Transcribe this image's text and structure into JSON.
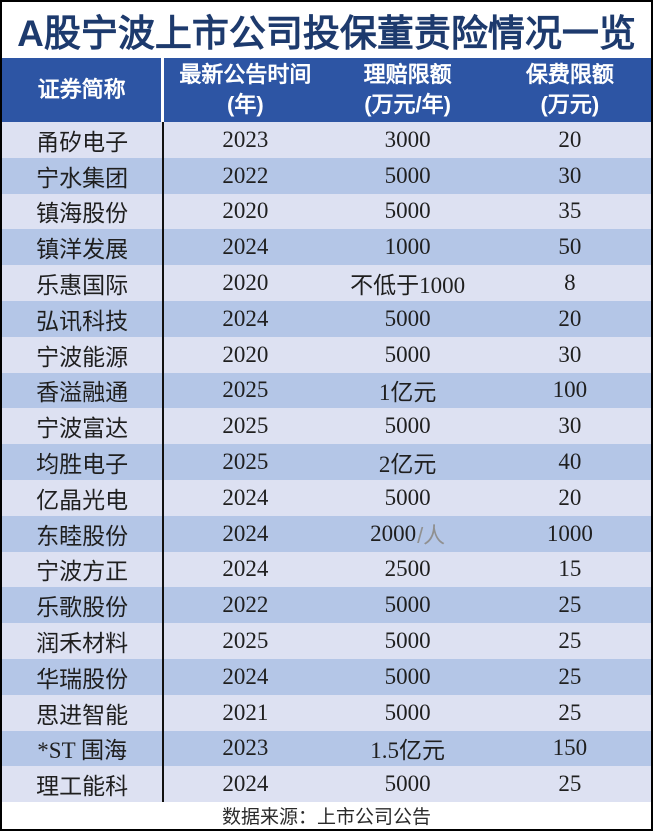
{
  "title": "A股宁波上市公司投保董责险情况一览",
  "header": {
    "columns": [
      {
        "line1": "证券简称",
        "line2": null
      },
      {
        "line1": "最新公告时间",
        "line2": "(年)"
      },
      {
        "line1": "理赔限额",
        "line2": "(万元/年)"
      },
      {
        "line1": "保费限额",
        "line2": "(万元)"
      }
    ]
  },
  "rows": [
    {
      "name": "甬矽电子",
      "year": "2023",
      "claim": "3000",
      "premium": "20"
    },
    {
      "name": "宁水集团",
      "year": "2022",
      "claim": "5000",
      "premium": "30"
    },
    {
      "name": "镇海股份",
      "year": "2020",
      "claim": "5000",
      "premium": "35"
    },
    {
      "name": "镇洋发展",
      "year": "2024",
      "claim": "1000",
      "premium": "50"
    },
    {
      "name": "乐惠国际",
      "year": "2020",
      "claim": "不低于1000",
      "premium": "8"
    },
    {
      "name": "弘讯科技",
      "year": "2024",
      "claim": "5000",
      "premium": "20"
    },
    {
      "name": "宁波能源",
      "year": "2020",
      "claim": "5000",
      "premium": "30"
    },
    {
      "name": "香溢融通",
      "year": "2025",
      "claim": "1亿元",
      "premium": "100"
    },
    {
      "name": "宁波富达",
      "year": "2025",
      "claim": "5000",
      "premium": "30"
    },
    {
      "name": "均胜电子",
      "year": "2025",
      "claim": "2亿元",
      "premium": "40"
    },
    {
      "name": "亿晶光电",
      "year": "2024",
      "claim": "5000",
      "premium": "20"
    },
    {
      "name": "东睦股份",
      "year": "2024",
      "claim": "2000",
      "claim_suffix": "/人",
      "premium": "1000"
    },
    {
      "name": "宁波方正",
      "year": "2024",
      "claim": "2500",
      "premium": "15"
    },
    {
      "name": "乐歌股份",
      "year": "2022",
      "claim": "5000",
      "premium": "25"
    },
    {
      "name": "润禾材料",
      "year": "2025",
      "claim": "5000",
      "premium": "25"
    },
    {
      "name": "华瑞股份",
      "year": "2024",
      "claim": "5000",
      "premium": "25"
    },
    {
      "name": "思进智能",
      "year": "2021",
      "claim": "5000",
      "premium": "25"
    },
    {
      "name": "*ST 围海",
      "year": "2023",
      "claim": "1.5亿元",
      "premium": "150"
    },
    {
      "name": "理工能科",
      "year": "2024",
      "claim": "5000",
      "premium": "25"
    }
  ],
  "footer": {
    "source": "数据来源：上市公司公告"
  },
  "colors": {
    "header_bg": "#2d55a4",
    "title_text": "#1d3a6d",
    "row_light": "#dde1f2",
    "row_dark": "#b4c6e7",
    "data_text": "#1f1f1f",
    "muted_suffix": "#909090",
    "border": "#000000"
  },
  "chart_data": {
    "type": "table",
    "title": "A股宁波上市公司投保董责险情况一览",
    "columns": [
      "证券简称",
      "最新公告时间(年)",
      "理赔限额(万元/年)",
      "保费限额(万元)"
    ],
    "rows": [
      [
        "甬矽电子",
        "2023",
        "3000",
        "20"
      ],
      [
        "宁水集团",
        "2022",
        "5000",
        "30"
      ],
      [
        "镇海股份",
        "2020",
        "5000",
        "35"
      ],
      [
        "镇洋发展",
        "2024",
        "1000",
        "50"
      ],
      [
        "乐惠国际",
        "2020",
        "不低于1000",
        "8"
      ],
      [
        "弘讯科技",
        "2024",
        "5000",
        "20"
      ],
      [
        "宁波能源",
        "2020",
        "5000",
        "30"
      ],
      [
        "香溢融通",
        "2025",
        "1亿元",
        "100"
      ],
      [
        "宁波富达",
        "2025",
        "5000",
        "30"
      ],
      [
        "均胜电子",
        "2025",
        "2亿元",
        "40"
      ],
      [
        "亿晶光电",
        "2024",
        "5000",
        "20"
      ],
      [
        "东睦股份",
        "2024",
        "2000/人",
        "1000"
      ],
      [
        "宁波方正",
        "2024",
        "2500",
        "15"
      ],
      [
        "乐歌股份",
        "2022",
        "5000",
        "25"
      ],
      [
        "润禾材料",
        "2025",
        "5000",
        "25"
      ],
      [
        "华瑞股份",
        "2024",
        "5000",
        "25"
      ],
      [
        "思进智能",
        "2021",
        "5000",
        "25"
      ],
      [
        "*ST 围海",
        "2023",
        "1.5亿元",
        "150"
      ],
      [
        "理工能科",
        "2024",
        "5000",
        "25"
      ]
    ],
    "source": "数据来源：上市公司公告",
    "layout": {
      "striped": true,
      "stripe_start": "light",
      "grid": "off",
      "column_divider_after": "证券简称"
    }
  }
}
